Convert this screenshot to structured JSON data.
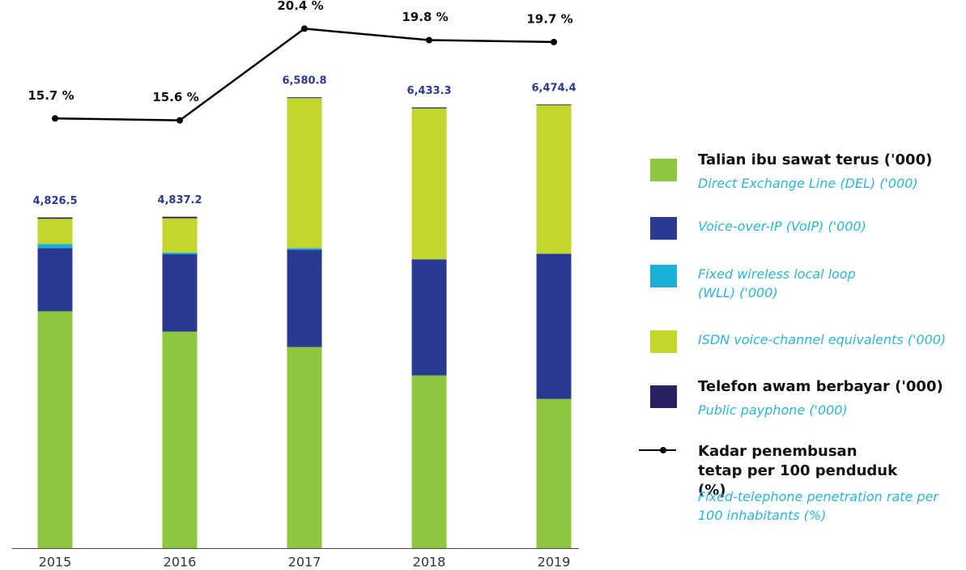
{
  "chart_data": {
    "type": "bar",
    "stacked": true,
    "categories": [
      "2015",
      "2016",
      "2017",
      "2018",
      "2019"
    ],
    "ylim": [
      0,
      8000
    ],
    "series": [
      {
        "name": "Talian ibu sawat terus ('000)",
        "name_en": "Direct Exchange Line (DEL) ('000)",
        "color": "#8dc63f",
        "values": [
          3457,
          3160,
          2935,
          2521,
          2178
        ]
      },
      {
        "name": "Voice-over-IP (VoIP) ('000)",
        "color": "#2b3990",
        "values": [
          923,
          1130,
          1420,
          1692,
          2118
        ]
      },
      {
        "name": "Fixed wireless local loop (WLL) ('000)",
        "color": "#1ab0d8",
        "values": [
          60,
          23,
          24,
          4,
          2
        ]
      },
      {
        "name": "ISDN voice-channel equivalents ('000)",
        "color": "#c2d62e",
        "values": [
          367,
          502,
          2189,
          2201,
          2166
        ]
      },
      {
        "name": "Telefon awam berbayar ('000)",
        "name_en": "Public payphone ('000)",
        "color": "#262262",
        "values": [
          20,
          22,
          12,
          15,
          10
        ]
      },
      {
        "name": "Kadar penembusan tetap per 100 penduduk (%)",
        "name_en": "Fixed-telephone penetration rate per 100 inhabitants (%)",
        "type": "line",
        "axis": "y2",
        "color": "#000000",
        "values": [
          15.7,
          15.6,
          20.4,
          19.8,
          19.7
        ],
        "value_labels": [
          "15.7 %",
          "15.6 %",
          "20.4 %",
          "19.8 %",
          "19.7 %"
        ]
      }
    ],
    "totals": [
      4826.5,
      4837.2,
      6580.8,
      6433.3,
      6474.4
    ],
    "total_labels": [
      "4,826.5",
      "4,837.2",
      "6,580.8",
      "6,433.3",
      "6,474.4"
    ],
    "y2lim": [
      -6.8,
      21.9
    ]
  }
}
